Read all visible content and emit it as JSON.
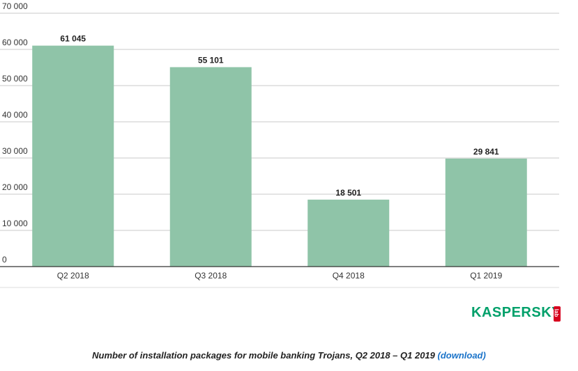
{
  "chart_data": {
    "type": "bar",
    "categories": [
      "Q2 2018",
      "Q3 2018",
      "Q4 2018",
      "Q1 2019"
    ],
    "values": [
      61045,
      55101,
      18501,
      29841
    ],
    "value_labels": [
      "61 045",
      "55 101",
      "18 501",
      "29 841"
    ],
    "ylim": [
      0,
      70000
    ],
    "yticks": [
      0,
      10000,
      20000,
      30000,
      40000,
      50000,
      60000,
      70000
    ],
    "ytick_labels": [
      "0",
      "10 000",
      "20 000",
      "30 000",
      "40 000",
      "50 000",
      "60 000",
      "70 000"
    ],
    "grid": true,
    "bar_color": "#8fc4a8"
  },
  "logo": {
    "word": "KASPERSKY",
    "lab": "lab",
    "color": "#00a06a",
    "lab_color": "#d7001e"
  },
  "caption": {
    "text": "Number of installation packages for mobile banking Trojans, Q2 2018 – Q1 2019 ",
    "link": "(download)",
    "link_color": "#1a73c9"
  }
}
